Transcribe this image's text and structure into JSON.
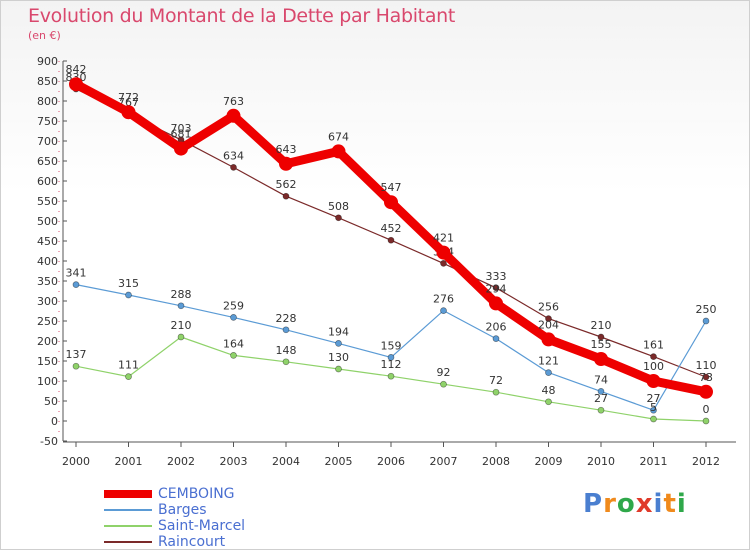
{
  "header": {
    "title": "Evolution du Montant de la Dette par Habitant",
    "subtitle": "(en €)"
  },
  "brand": {
    "logo_text": "Proxiti",
    "letter_colors": [
      "#4a7fd0",
      "#f08a1c",
      "#2fa84a",
      "#e03a2a",
      "#4a7fd0",
      "#f08a1c",
      "#2fa84a"
    ]
  },
  "chart_data": {
    "type": "line",
    "title": "Evolution du Montant de la Dette par Habitant",
    "subtitle": "(en €)",
    "x": [
      "2000",
      "2001",
      "2002",
      "2003",
      "2004",
      "2005",
      "2006",
      "2007",
      "2008",
      "2009",
      "2010",
      "2011",
      "2012"
    ],
    "ylim": [
      -50,
      900
    ],
    "yticks": [
      -50,
      0,
      50,
      100,
      150,
      200,
      250,
      300,
      350,
      400,
      450,
      500,
      550,
      600,
      650,
      700,
      750,
      800,
      850,
      900
    ],
    "grid": false,
    "legend_position": "bottom-left",
    "series": [
      {
        "name": "Raincourt",
        "color": "#7b2a2a",
        "values": [
          830,
          767,
          703,
          634,
          562,
          508,
          452,
          394,
          333,
          256,
          210,
          161,
          110
        ]
      },
      {
        "name": "Barges",
        "color": "#5b9bd5",
        "values": [
          341,
          315,
          288,
          259,
          228,
          194,
          159,
          276,
          206,
          121,
          74,
          27,
          250
        ]
      },
      {
        "name": "Saint-Marcel",
        "color": "#8fd26a",
        "values": [
          137,
          111,
          210,
          164,
          148,
          130,
          112,
          92,
          72,
          48,
          27,
          5,
          0
        ]
      },
      {
        "name": "CEMBOING",
        "color": "#ee0000",
        "values": [
          842,
          772,
          681,
          763,
          643,
          674,
          547,
          421,
          294,
          204,
          155,
          100,
          73
        ]
      }
    ],
    "legend_order": [
      "CEMBOING",
      "Barges",
      "Saint-Marcel",
      "Raincourt"
    ]
  }
}
